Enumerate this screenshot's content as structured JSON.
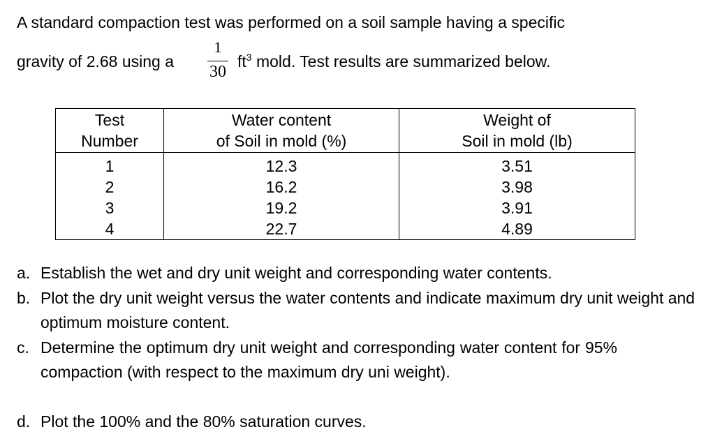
{
  "intro": {
    "line1": "A standard compaction test was performed on a soil sample having a specific",
    "line2_pre": "gravity of 2.68 using a",
    "fraction_num": "1",
    "fraction_den": "30",
    "unit": "ft",
    "unit_exp": "3",
    "line2_post": " mold.  Test results are summarized below."
  },
  "table": {
    "headers": [
      [
        "Test",
        "Number"
      ],
      [
        "Water content",
        "of Soil in mold (%)"
      ],
      [
        "Weight of",
        "Soil in mold (lb)"
      ]
    ],
    "rows": [
      [
        "1",
        "12.3",
        "3.51"
      ],
      [
        "2",
        "16.2",
        "3.98"
      ],
      [
        "3",
        "19.2",
        "3.91"
      ],
      [
        "4",
        "22.7",
        "4.89"
      ]
    ]
  },
  "questions": [
    {
      "label": "a.",
      "text": "Establish the wet and dry unit weight and corresponding water contents."
    },
    {
      "label": "b.",
      "text": "Plot the dry unit weight versus the water contents and indicate maximum dry unit weight and optimum moisture content."
    },
    {
      "label": "c.",
      "text": "Determine the optimum dry unit weight and corresponding water content for 95% compaction (with respect to the maximum dry uni weight)."
    },
    {
      "label": "d.",
      "text": "Plot the 100% and the 80% saturation curves."
    }
  ]
}
